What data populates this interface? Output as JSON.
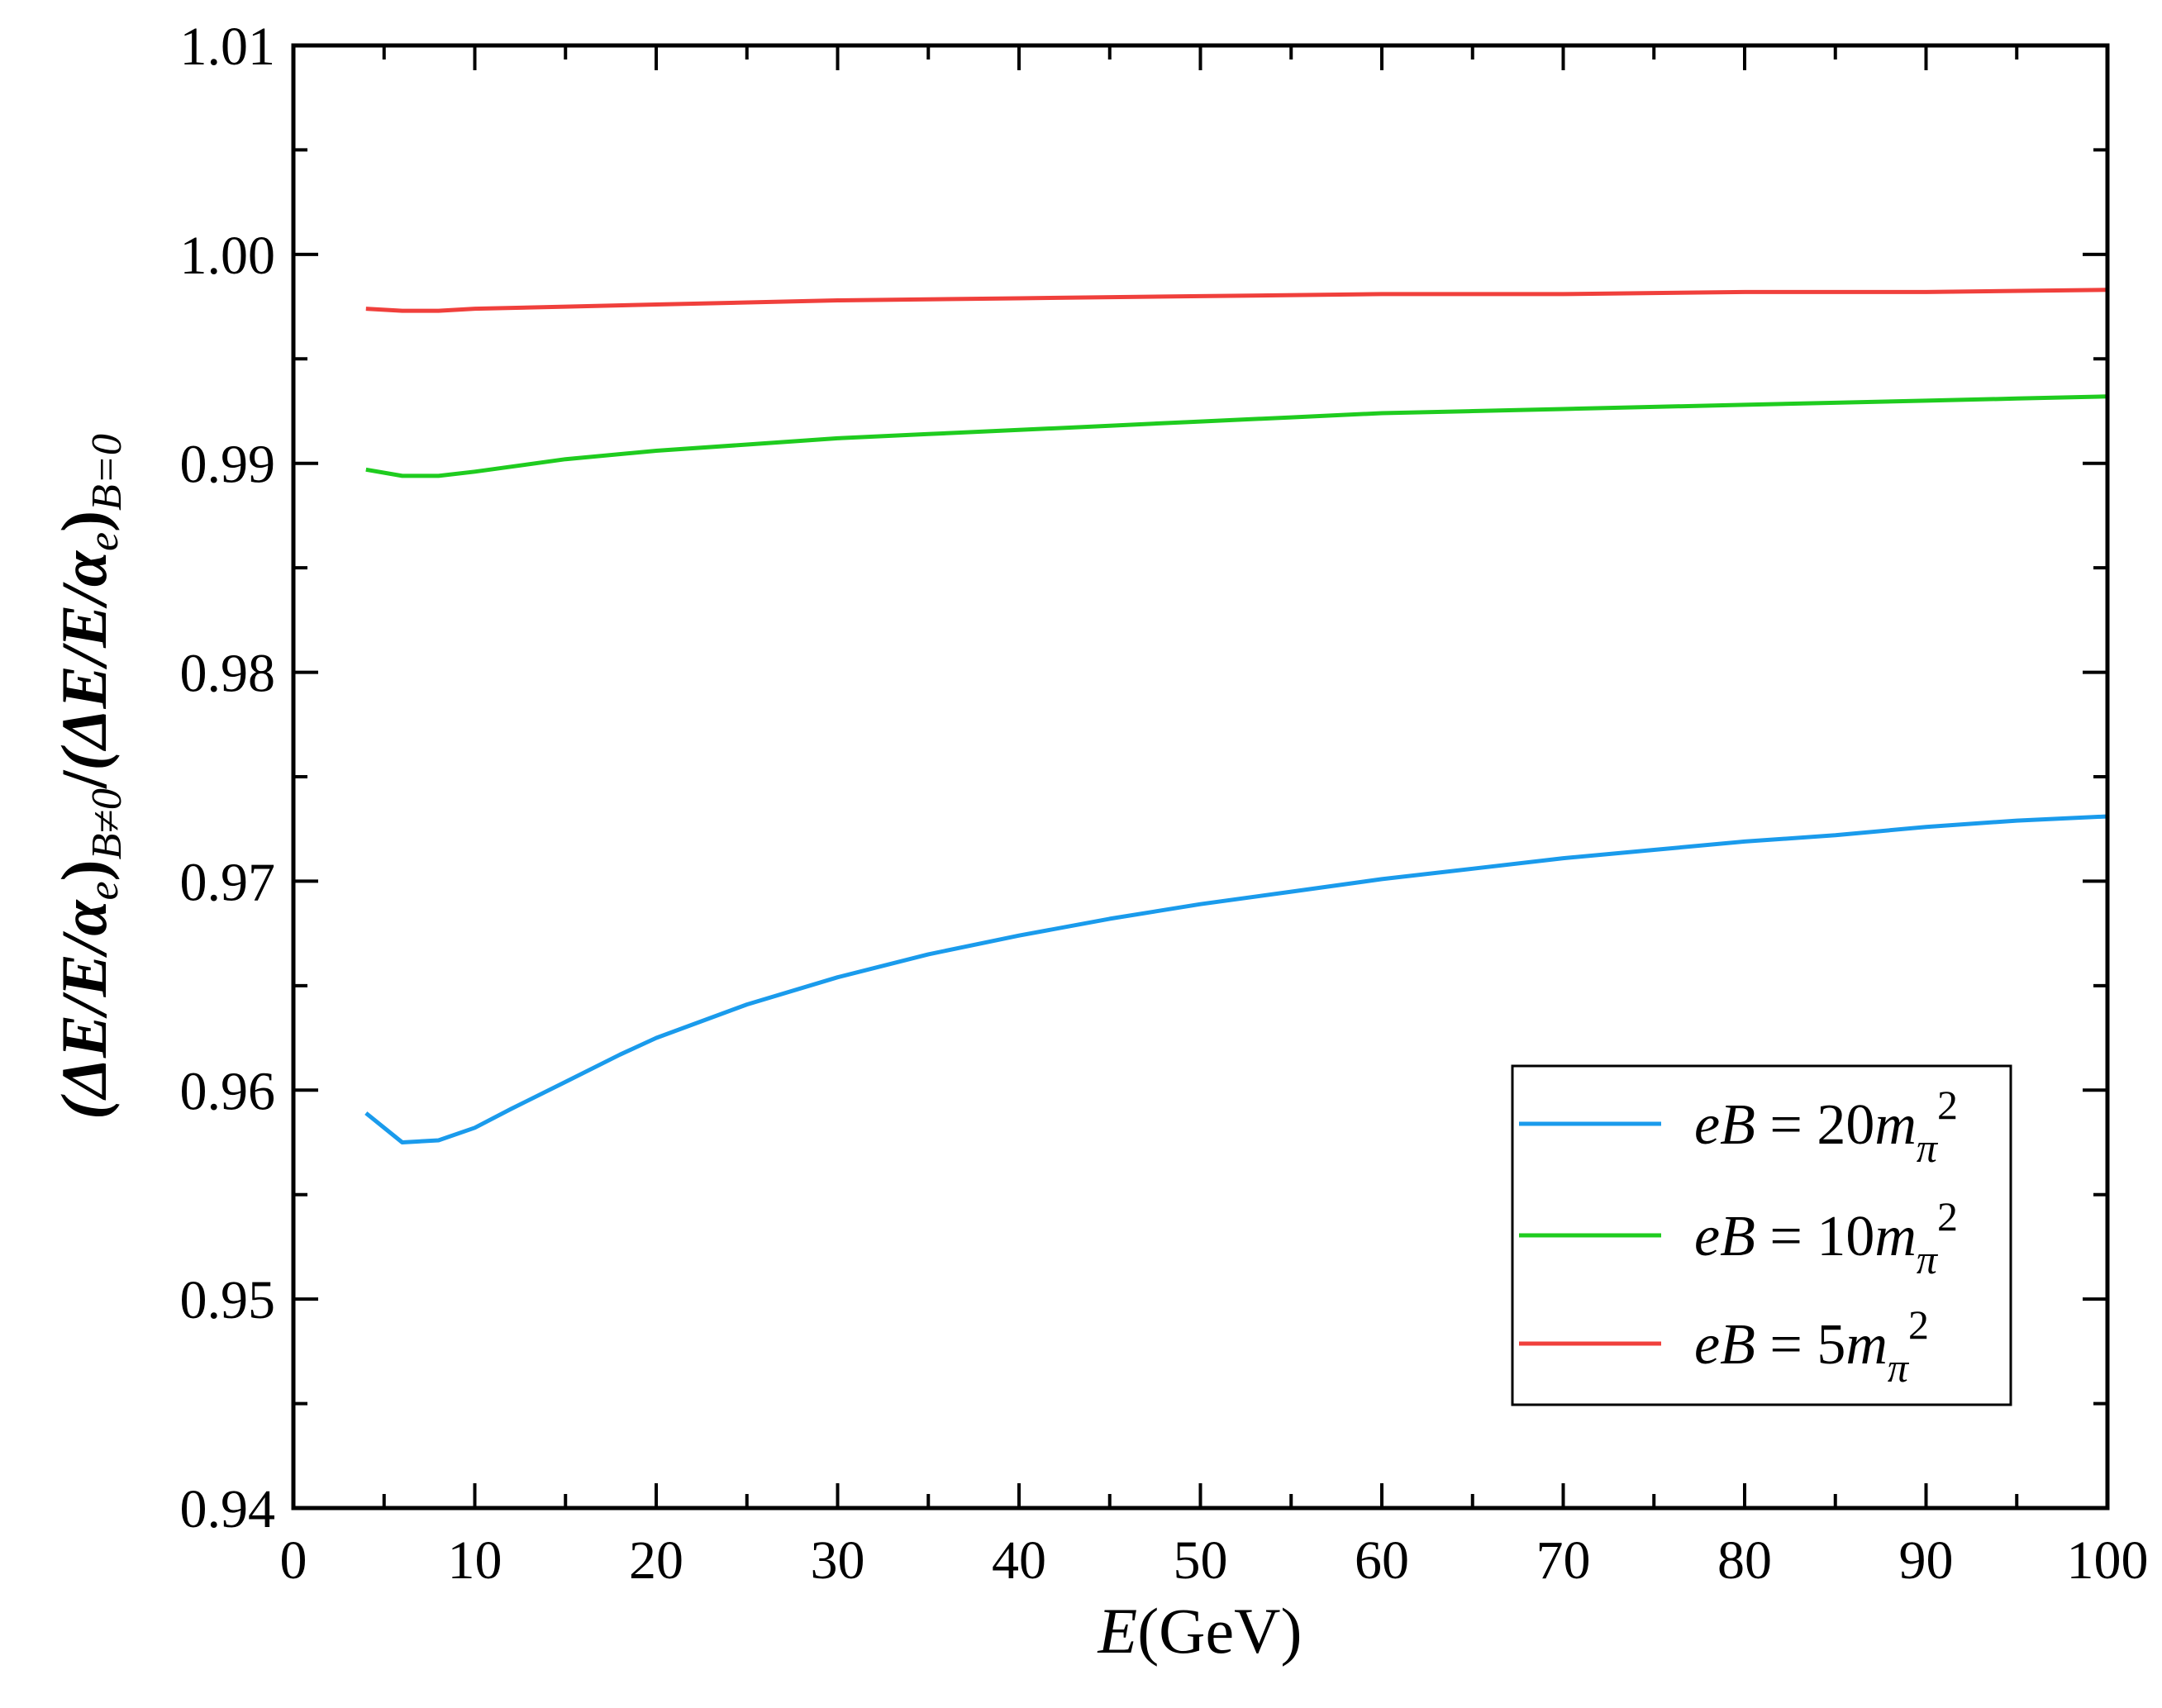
{
  "chart_data": {
    "type": "line",
    "title": "",
    "xlabel": {
      "var": "E",
      "unit": "(GeV)"
    },
    "ylabel": {
      "num_open": "(ΔE/E/α",
      "num_sub_e": "e",
      "num_close": ")",
      "num_subscript": "B≠0",
      "slash": "/",
      "den_open": "(ΔE/E/α",
      "den_sub_e": "e",
      "den_close": ")",
      "den_subscript": "B=0"
    },
    "xlim": [
      0,
      100
    ],
    "ylim": [
      0.94,
      1.01
    ],
    "xticks": [
      "0",
      "10",
      "20",
      "30",
      "40",
      "50",
      "60",
      "70",
      "80",
      "90",
      "100"
    ],
    "yticks": [
      "0.94",
      "0.95",
      "0.96",
      "0.97",
      "0.98",
      "0.99",
      "1.00",
      "1.01"
    ],
    "grid": false,
    "legend_position": "lower-right",
    "series": [
      {
        "name": "eB = 20mπ²",
        "label": {
          "lhs": "eB",
          "eq": " = ",
          "coef": "20",
          "m": "m",
          "sub": "π",
          "sup": "2"
        },
        "color": "#1a9bec",
        "x": [
          4,
          6,
          8,
          10,
          12,
          15,
          18,
          20,
          25,
          30,
          35,
          40,
          45,
          50,
          55,
          60,
          65,
          70,
          75,
          80,
          85,
          90,
          95,
          100
        ],
        "y": [
          0.9589,
          0.9575,
          0.9576,
          0.9582,
          0.9591,
          0.9604,
          0.9617,
          0.9625,
          0.9641,
          0.9654,
          0.9665,
          0.9674,
          0.9682,
          0.9689,
          0.9695,
          0.9701,
          0.9706,
          0.9711,
          0.9715,
          0.9719,
          0.9722,
          0.9726,
          0.9729,
          0.9731
        ]
      },
      {
        "name": "eB = 10mπ²",
        "label": {
          "lhs": "eB",
          "eq": " = ",
          "coef": "10",
          "m": "m",
          "sub": "π",
          "sup": "2"
        },
        "color": "#1fcc1f",
        "x": [
          4,
          6,
          8,
          10,
          15,
          20,
          25,
          30,
          35,
          40,
          45,
          50,
          55,
          60,
          65,
          70,
          75,
          80,
          85,
          90,
          95,
          100
        ],
        "y": [
          0.9897,
          0.9894,
          0.9894,
          0.9896,
          0.9902,
          0.9906,
          0.9909,
          0.9912,
          0.9914,
          0.9916,
          0.9918,
          0.992,
          0.9922,
          0.9924,
          0.9925,
          0.9926,
          0.9927,
          0.9928,
          0.9929,
          0.993,
          0.9931,
          0.9932
        ]
      },
      {
        "name": "eB = 5mπ²",
        "label": {
          "lhs": "eB",
          "eq": " = ",
          "coef": "5",
          "m": "m",
          "sub": "π",
          "sup": "2"
        },
        "color": "#f0403c",
        "x": [
          4,
          6,
          8,
          10,
          15,
          20,
          30,
          40,
          50,
          60,
          70,
          80,
          90,
          100
        ],
        "y": [
          0.9974,
          0.9973,
          0.9973,
          0.9974,
          0.9975,
          0.9976,
          0.9978,
          0.9979,
          0.998,
          0.9981,
          0.9981,
          0.9982,
          0.9982,
          0.9983
        ]
      }
    ]
  }
}
